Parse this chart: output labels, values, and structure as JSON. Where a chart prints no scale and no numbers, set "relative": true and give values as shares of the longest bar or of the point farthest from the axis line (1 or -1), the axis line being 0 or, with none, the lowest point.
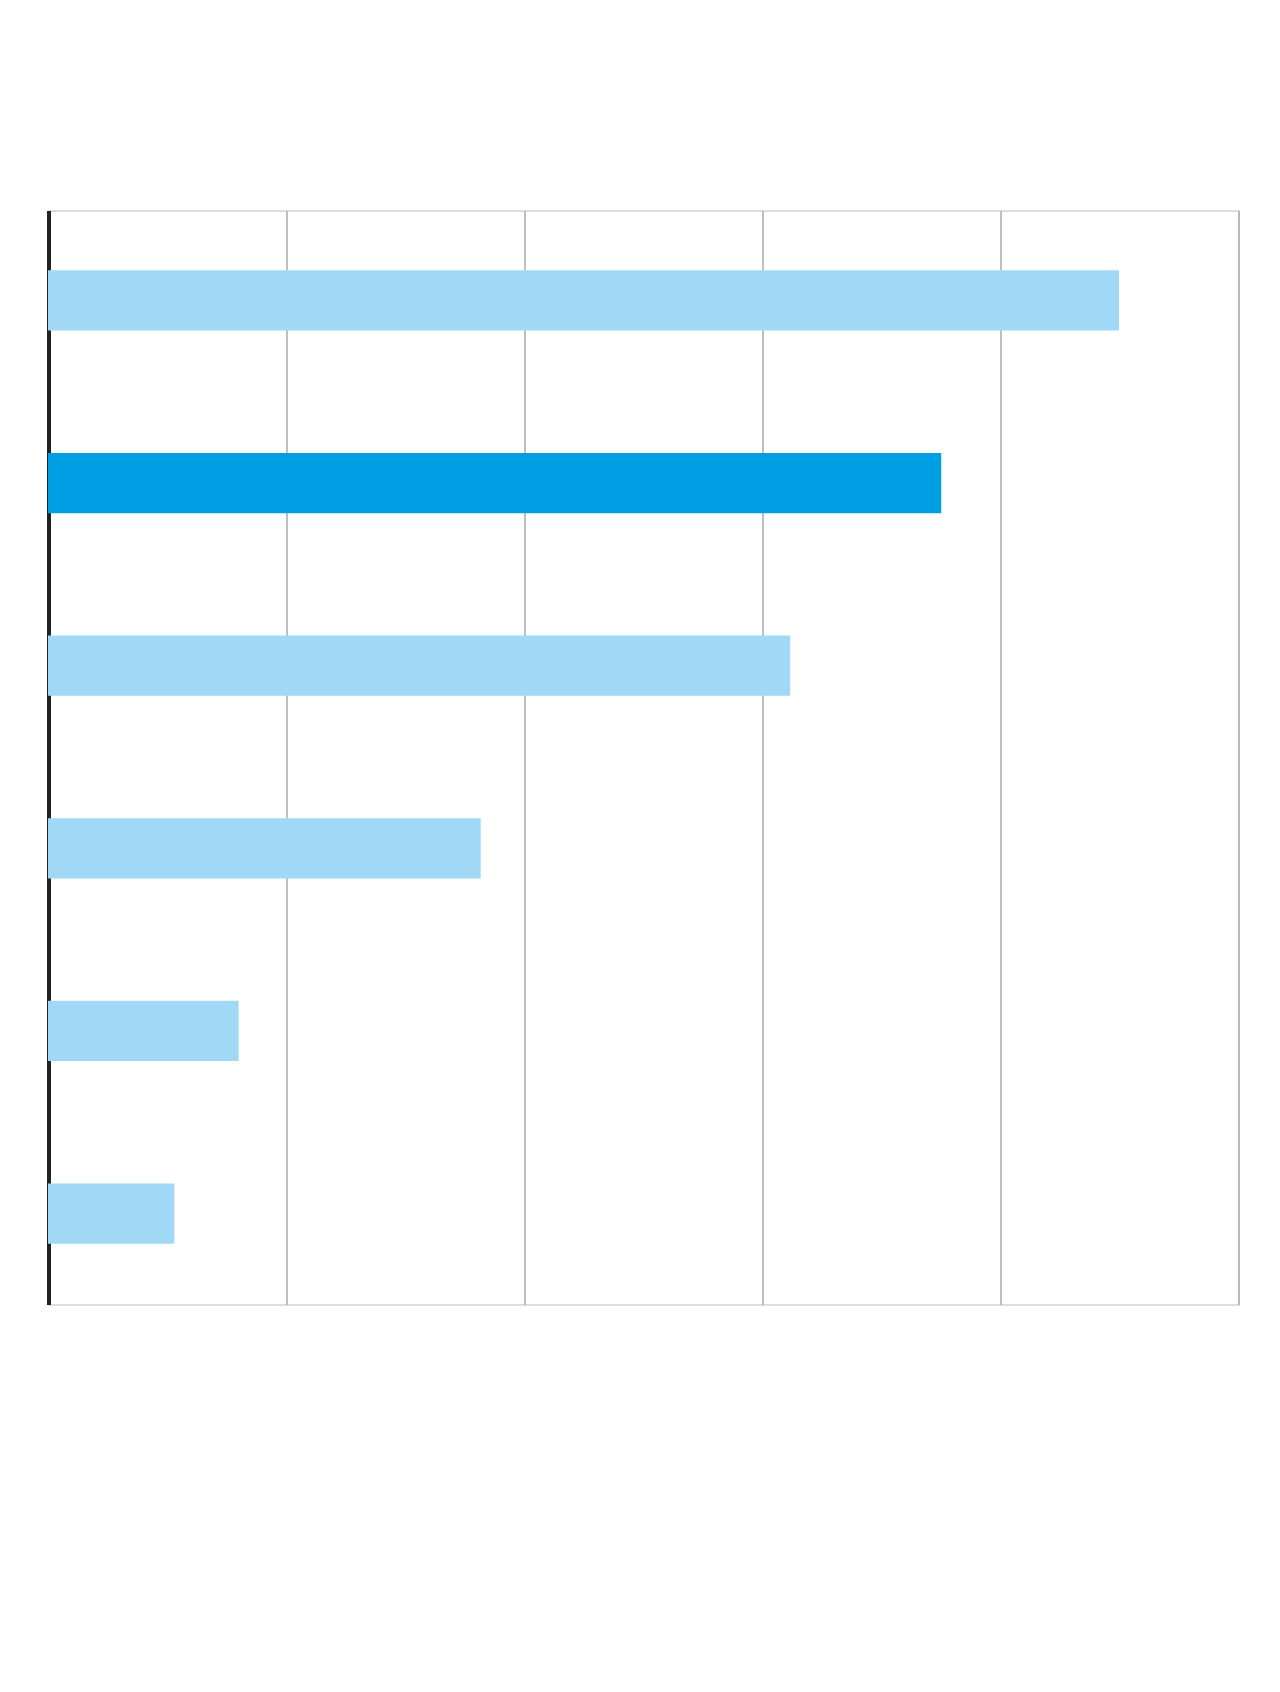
{
  "chart_data": {
    "type": "bar",
    "orientation": "horizontal",
    "relative": true,
    "categories": [
      null,
      null,
      null,
      null,
      null,
      null
    ],
    "values": [
      1,
      0.834,
      0.693,
      0.404,
      0.178,
      0.118
    ],
    "colors": [
      "#a0d8f5",
      "#009fe3",
      "#a0d8f5",
      "#a0d8f5",
      "#a0d8f5",
      "#a0d8f5"
    ],
    "grid": "x",
    "tick_labels": false
  }
}
